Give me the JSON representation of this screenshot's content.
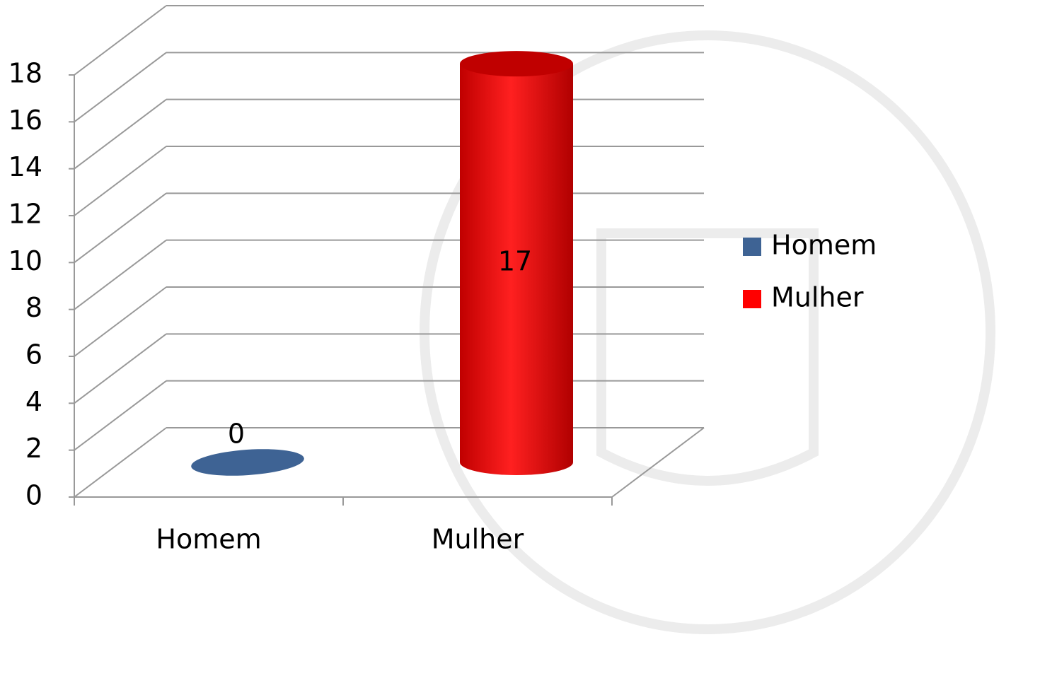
{
  "chart_data": {
    "type": "bar3d",
    "categories": [
      "Homem",
      "Mulher"
    ],
    "series": [
      {
        "name": "Homem",
        "color": "#3e6394",
        "values": [
          0,
          null
        ]
      },
      {
        "name": "Mulher",
        "color": "#ff0000",
        "values": [
          null,
          17
        ]
      }
    ],
    "ylim": [
      0,
      18
    ],
    "yticks": [
      0,
      2,
      4,
      6,
      8,
      10,
      12,
      14,
      16,
      18
    ],
    "grid": true,
    "legend": "right"
  }
}
